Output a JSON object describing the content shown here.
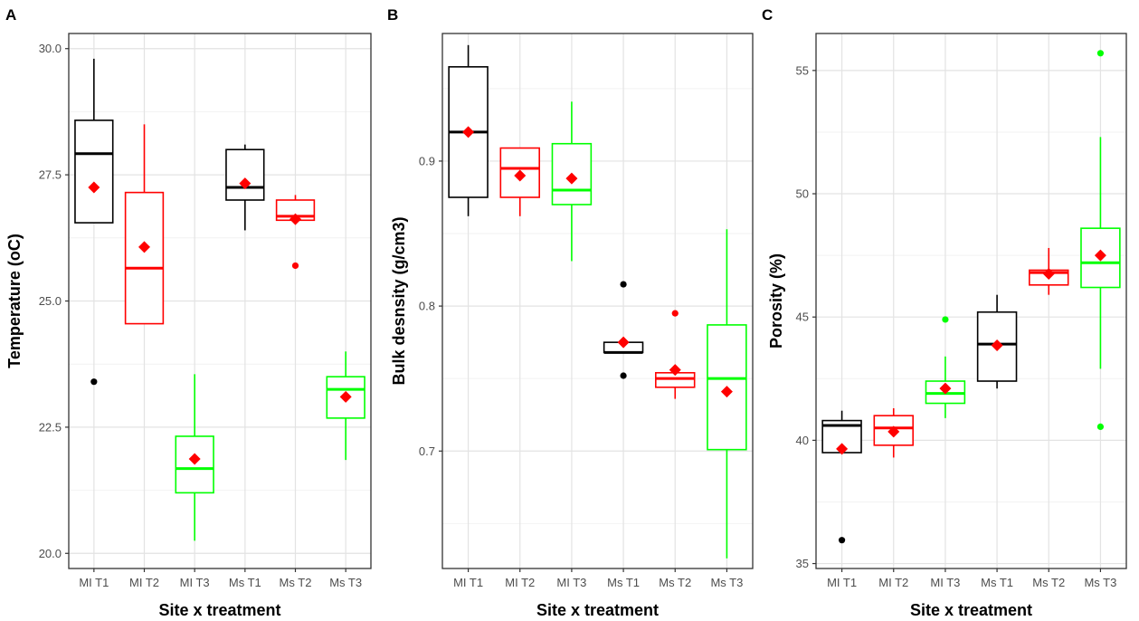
{
  "chart_data": [
    {
      "panel": "A",
      "type": "box",
      "xlabel": "Site x treatment",
      "ylabel": "Temperature (oC)",
      "categories": [
        "MI T1",
        "MI T2",
        "MI T3",
        "Ms T1",
        "Ms T2",
        "Ms T3"
      ],
      "colors": [
        "#000000",
        "#ff0000",
        "#00ff00",
        "#000000",
        "#ff0000",
        "#00ff00"
      ],
      "ylim": [
        19.7,
        30.3
      ],
      "yticks": [
        20.0,
        22.5,
        25.0,
        27.5,
        30.0
      ],
      "ytick_labels": [
        "20.0",
        "22.5",
        "25.0",
        "27.5",
        "30.0"
      ],
      "boxes": [
        {
          "q1": 26.55,
          "median": 27.92,
          "q3": 28.58,
          "whisker_low": 26.55,
          "whisker_high": 29.8,
          "mean": 27.25,
          "outliers": [
            23.4
          ]
        },
        {
          "q1": 24.55,
          "median": 25.65,
          "q3": 27.15,
          "whisker_low": 24.55,
          "whisker_high": 28.5,
          "mean": 26.07,
          "outliers": []
        },
        {
          "q1": 21.2,
          "median": 21.68,
          "q3": 22.32,
          "whisker_low": 20.25,
          "whisker_high": 23.55,
          "mean": 21.87,
          "outliers": []
        },
        {
          "q1": 27.0,
          "median": 27.25,
          "q3": 28.0,
          "whisker_low": 26.4,
          "whisker_high": 28.1,
          "mean": 27.33,
          "outliers": []
        },
        {
          "q1": 26.6,
          "median": 26.68,
          "q3": 27.0,
          "whisker_low": 26.6,
          "whisker_high": 27.1,
          "mean": 26.62,
          "outliers": [
            25.7
          ]
        },
        {
          "q1": 22.68,
          "median": 23.25,
          "q3": 23.5,
          "whisker_low": 21.85,
          "whisker_high": 24.0,
          "mean": 23.1,
          "outliers": []
        }
      ]
    },
    {
      "panel": "B",
      "type": "box",
      "xlabel": "Site x treatment",
      "ylabel": "Bulk desnsity (g/cm3)",
      "categories": [
        "MI T1",
        "MI T2",
        "MI T3",
        "Ms T1",
        "Ms T2",
        "Ms T3"
      ],
      "colors": [
        "#000000",
        "#ff0000",
        "#00ff00",
        "#000000",
        "#ff0000",
        "#00ff00"
      ],
      "ylim": [
        0.619,
        0.988
      ],
      "yticks": [
        0.7,
        0.8,
        0.9
      ],
      "ytick_labels": [
        "0.7",
        "0.8",
        "0.9"
      ],
      "boxes": [
        {
          "q1": 0.875,
          "median": 0.92,
          "q3": 0.965,
          "whisker_low": 0.862,
          "whisker_high": 0.98,
          "mean": 0.92,
          "outliers": []
        },
        {
          "q1": 0.875,
          "median": 0.895,
          "q3": 0.909,
          "whisker_low": 0.862,
          "whisker_high": 0.909,
          "mean": 0.89,
          "outliers": []
        },
        {
          "q1": 0.87,
          "median": 0.88,
          "q3": 0.912,
          "whisker_low": 0.831,
          "whisker_high": 0.941,
          "mean": 0.888,
          "outliers": []
        },
        {
          "q1": 0.768,
          "median": 0.768,
          "q3": 0.775,
          "whisker_low": 0.768,
          "whisker_high": 0.775,
          "mean": 0.775,
          "outliers": [
            0.815,
            0.752
          ]
        },
        {
          "q1": 0.744,
          "median": 0.75,
          "q3": 0.754,
          "whisker_low": 0.736,
          "whisker_high": 0.754,
          "mean": 0.756,
          "outliers": [
            0.795
          ]
        },
        {
          "q1": 0.701,
          "median": 0.75,
          "q3": 0.787,
          "whisker_low": 0.626,
          "whisker_high": 0.853,
          "mean": 0.741,
          "outliers": []
        }
      ]
    },
    {
      "panel": "C",
      "type": "box",
      "xlabel": "Site x treatment",
      "ylabel": "Porosity (%)",
      "categories": [
        "MI T1",
        "MI T2",
        "MI T3",
        "Ms T1",
        "Ms T2",
        "Ms T3"
      ],
      "colors": [
        "#000000",
        "#ff0000",
        "#00ff00",
        "#000000",
        "#ff0000",
        "#00ff00"
      ],
      "ylim": [
        34.8,
        56.5
      ],
      "yticks": [
        35,
        40,
        45,
        50,
        55
      ],
      "ytick_labels": [
        "35",
        "40",
        "45",
        "50",
        "55"
      ],
      "boxes": [
        {
          "q1": 39.5,
          "median": 40.6,
          "q3": 40.8,
          "whisker_low": 39.5,
          "whisker_high": 41.2,
          "mean": 39.65,
          "outliers": [
            35.95
          ]
        },
        {
          "q1": 39.8,
          "median": 40.5,
          "q3": 41.0,
          "whisker_low": 39.3,
          "whisker_high": 41.3,
          "mean": 40.35,
          "outliers": []
        },
        {
          "q1": 41.5,
          "median": 41.9,
          "q3": 42.4,
          "whisker_low": 40.9,
          "whisker_high": 43.4,
          "mean": 42.1,
          "outliers": [
            44.9
          ]
        },
        {
          "q1": 42.4,
          "median": 43.9,
          "q3": 45.2,
          "whisker_low": 42.1,
          "whisker_high": 45.9,
          "mean": 43.85,
          "outliers": []
        },
        {
          "q1": 46.3,
          "median": 46.8,
          "q3": 46.9,
          "whisker_low": 45.9,
          "whisker_high": 47.8,
          "mean": 46.75,
          "outliers": []
        },
        {
          "q1": 46.2,
          "median": 47.2,
          "q3": 48.6,
          "whisker_low": 42.9,
          "whisker_high": 52.3,
          "mean": 47.5,
          "outliers": [
            55.7,
            40.55
          ]
        }
      ]
    }
  ]
}
